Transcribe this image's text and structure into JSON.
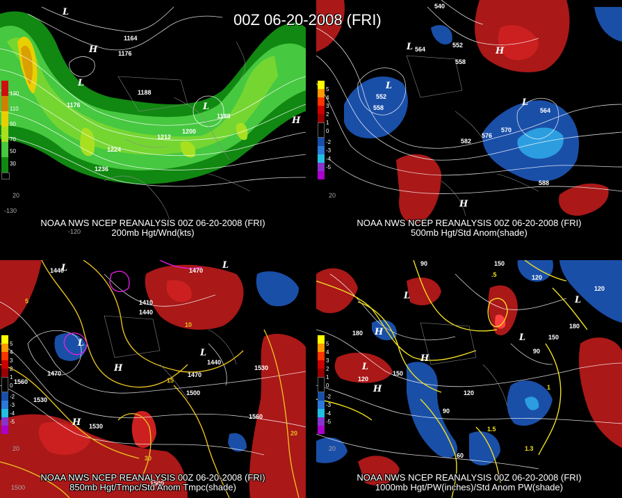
{
  "main_title": "00Z 06-20-2008 (FRI)",
  "panels": [
    {
      "id": "p200",
      "caption_line1": "NOAA NWS NCEP REANALYSIS 00Z 06-20-2008 (FRI)",
      "caption_line2": "200mb Hgt/Wnd(kts)",
      "legend": [
        "130",
        "110",
        "90",
        "70",
        "50",
        "30"
      ],
      "legend_colors": [
        "#cc1010",
        "#d08000",
        "#e8d000",
        "#a8e020",
        "#46c840",
        "#118811"
      ],
      "contour_labels": [
        "1176",
        "1188",
        "1212",
        "1200",
        "1188",
        "1224",
        "1236",
        "1176",
        "1164"
      ],
      "centers": [
        "L",
        "H",
        "L",
        "L",
        "H"
      ],
      "edge_labels": [
        "20",
        "-130",
        "-120"
      ]
    },
    {
      "id": "p500",
      "caption_line1": "NOAA NWS NCEP REANALYSIS 00Z 06-20-2008 (FRI)",
      "caption_line2": "500mb Hgt/Std Anom(shade)",
      "legend": [
        "5",
        "4",
        "3",
        "2",
        "1",
        "0",
        "-1",
        "-2",
        "-3",
        "-4",
        "-5"
      ],
      "legend_colors": [
        "#ffff00",
        "#ff9900",
        "#ff3300",
        "#cc0000",
        "#990000",
        "#000000",
        "#1a4fa8",
        "#2c78d8",
        "#21c0e0",
        "#8833cc",
        "#aa00cc"
      ],
      "contour_labels": [
        "540",
        "552",
        "564",
        "558",
        "552",
        "558",
        "582",
        "576",
        "570",
        "564",
        "588"
      ],
      "centers": [
        "L",
        "L",
        "H",
        "L",
        "H"
      ],
      "edge_labels": [
        "20"
      ]
    },
    {
      "id": "p850",
      "caption_line1": "NOAA NWS NCEP REANALYSIS 00Z 06-20-2008 (FRI)",
      "caption_line2": "850mb Hgt/Tmpc/Std Anom Tmpc(shade)",
      "legend": [
        "5",
        "4",
        "3",
        "2",
        "1",
        "0",
        "-1",
        "-2",
        "-3",
        "-4",
        "-5"
      ],
      "legend_colors": [
        "#ffff00",
        "#ff9900",
        "#ff3300",
        "#cc0000",
        "#990000",
        "#000000",
        "#1a4fa8",
        "#2c78d8",
        "#21c0e0",
        "#8833cc",
        "#aa00cc"
      ],
      "contour_labels": [
        "1440",
        "1470",
        "1440",
        "1470",
        "1530",
        "1560",
        "1530",
        "1470",
        "1500",
        "1440",
        "1530",
        "1560",
        "1500",
        "1410",
        "10",
        "15",
        "20",
        "30",
        "5"
      ],
      "centers": [
        "L",
        "L",
        "H",
        "L",
        "H",
        "L"
      ],
      "edge_labels": [
        "20",
        "1500"
      ]
    },
    {
      "id": "p1000",
      "caption_line1": "NOAA NWS NCEP REANALYSIS 00Z 06-20-2008 (FRI)",
      "caption_line2": "1000mb Hgt/PW(inches)/Std Anom PW(shade)",
      "legend": [
        "5",
        "4",
        "3",
        "2",
        "1",
        "0",
        "-1",
        "-2",
        "-3",
        "-4",
        "-5"
      ],
      "legend_colors": [
        "#ffff00",
        "#ff9900",
        "#ff3300",
        "#cc0000",
        "#990000",
        "#000000",
        "#1a4fa8",
        "#2c78d8",
        "#21c0e0",
        "#8833cc",
        "#aa00cc"
      ],
      "contour_labels": [
        "90",
        "150",
        "120",
        "180",
        "120",
        "150",
        "90",
        "180",
        "120",
        "90",
        "60",
        "150",
        "120",
        ".5",
        "1",
        "1.5",
        "1.3"
      ],
      "centers": [
        "L",
        "H",
        "L",
        "H",
        "L",
        "L",
        "H"
      ],
      "edge_labels": [
        "20"
      ]
    }
  ]
}
